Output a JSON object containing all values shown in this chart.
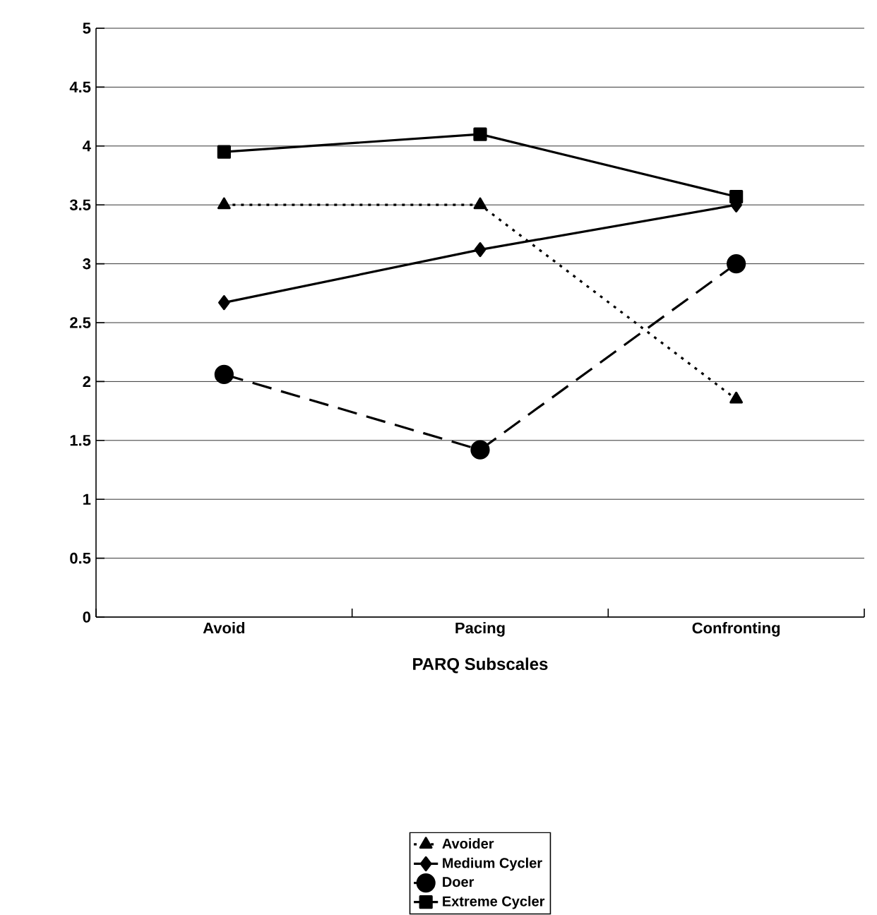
{
  "chart_data": {
    "type": "line",
    "xlabel": "PARQ Subscales",
    "categories": [
      "Avoid",
      "Pacing",
      "Confronting"
    ],
    "series": [
      {
        "name": "Avoider",
        "color": "#000000",
        "values": [
          3.5,
          3.5,
          1.85
        ],
        "marker": "triangle",
        "line_style": "dotted"
      },
      {
        "name": "Medium Cycler",
        "color": "#000000",
        "values": [
          2.67,
          3.12,
          3.5
        ],
        "marker": "diamond",
        "line_style": "solid"
      },
      {
        "name": "Doer",
        "color": "#000000",
        "values": [
          2.06,
          1.42,
          3.0
        ],
        "marker": "circle",
        "line_style": "dashed"
      },
      {
        "name": "Extreme Cycler",
        "color": "#000000",
        "values": [
          3.95,
          4.1,
          3.57
        ],
        "marker": "square",
        "line_style": "solid"
      }
    ],
    "ylim": [
      0,
      5
    ],
    "yticks": [
      0,
      0.5,
      1,
      1.5,
      2,
      2.5,
      3,
      3.5,
      4,
      4.5,
      5
    ],
    "grid": "y",
    "legend": "bottom"
  }
}
